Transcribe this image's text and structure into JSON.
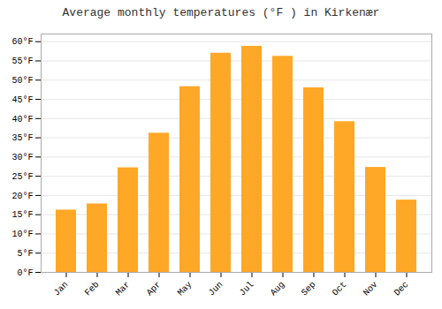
{
  "chart_data": {
    "type": "bar",
    "title": "Average monthly temperatures (°F ) in Kirkenær",
    "categories": [
      "Jan",
      "Feb",
      "Mar",
      "Apr",
      "May",
      "Jun",
      "Jul",
      "Aug",
      "Sep",
      "Oct",
      "Nov",
      "Dec"
    ],
    "values": [
      16.2,
      17.8,
      27.2,
      36.2,
      48.3,
      57.0,
      58.8,
      56.2,
      48.0,
      39.2,
      27.3,
      18.8
    ],
    "color": "#FFA726",
    "ylim": [
      0,
      62
    ],
    "yticks": [
      {
        "value": 0,
        "label": "0°F"
      },
      {
        "value": 5,
        "label": "5°F"
      },
      {
        "value": 10,
        "label": "10°F"
      },
      {
        "value": 15,
        "label": "15°F"
      },
      {
        "value": 20,
        "label": "20°F"
      },
      {
        "value": 25,
        "label": "25°F"
      },
      {
        "value": 30,
        "label": "30°F"
      },
      {
        "value": 35,
        "label": "35°F"
      },
      {
        "value": 40,
        "label": "40°F"
      },
      {
        "value": 45,
        "label": "45°F"
      },
      {
        "value": 50,
        "label": "50°F"
      },
      {
        "value": 55,
        "label": "55°F"
      },
      {
        "value": 60,
        "label": "60°F"
      }
    ],
    "grid": true
  }
}
